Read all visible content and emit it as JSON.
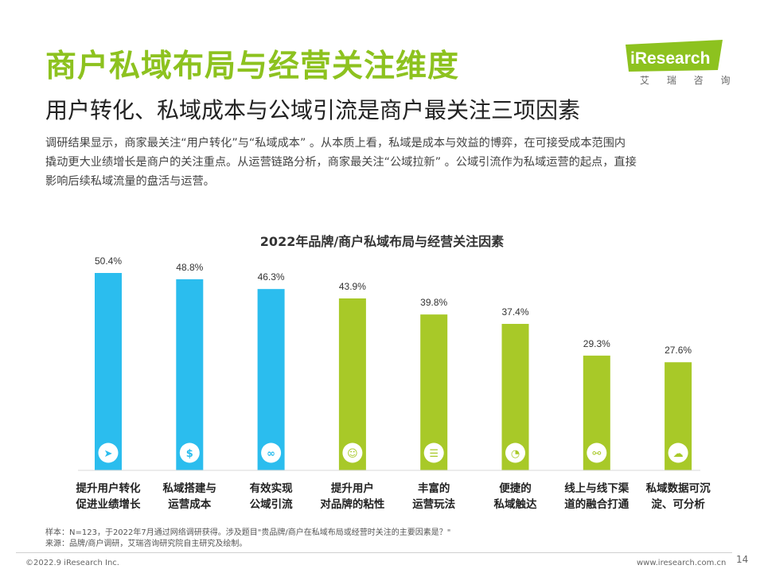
{
  "header": {
    "title": "商户私域布局与经营关注维度",
    "subtitle": "用户转化、私域成本与公域引流是商户最关注三项因素"
  },
  "logo": {
    "brand": "iResearch",
    "sub": "艾 瑞 咨 询",
    "color": "#8dc21f"
  },
  "intro": {
    "line1": "调研结果显示，商家最关注“用户转化”与“私域成本” 。从本质上看，私域是成本与效益的博弈，在可接受成本范围内",
    "line2": "撬动更大业绩增长是商户的关注重点。从运营链路分析，商家最关注“公域拉新” 。公域引流作为私域运营的起点，直接",
    "line3": "影响后续私域流量的盘活与运营。"
  },
  "chart_data": {
    "type": "bar",
    "title": "2022年品牌/商户私域布局与经营关注因素",
    "categories": [
      [
        "提升用户转化",
        "促进业绩增长"
      ],
      [
        "私域搭建与",
        "运营成本"
      ],
      [
        "有效实现",
        "公域引流"
      ],
      [
        "提升用户",
        "对品牌的粘性"
      ],
      [
        "丰富的",
        "运营玩法"
      ],
      [
        "便捷的",
        "私域触达"
      ],
      [
        "线上与线下渠",
        "道的融合打通"
      ],
      [
        "私域数据可沉",
        "淀、可分析"
      ]
    ],
    "values": [
      50.4,
      48.8,
      46.3,
      43.9,
      39.8,
      37.4,
      29.3,
      27.6
    ],
    "value_labels": [
      "50.4%",
      "48.8%",
      "46.3%",
      "43.9%",
      "39.8%",
      "37.4%",
      "29.3%",
      "27.6%"
    ],
    "ylim": [
      0,
      50.4
    ],
    "colors": [
      "#2bbdee",
      "#2bbdee",
      "#2bbdee",
      "#a8c928",
      "#a8c928",
      "#a8c928",
      "#a8c928",
      "#a8c928"
    ],
    "icons": [
      "navigation-icon",
      "money-bag-icon",
      "link-nodes-icon",
      "users-icon",
      "document-icon",
      "satellite-icon",
      "chain-link-icon",
      "cloud-upload-icon"
    ],
    "icon_glyphs": [
      "➤",
      "$",
      "∞",
      "☺",
      "☰",
      "◔",
      "⚯",
      "☁"
    ],
    "grid": false,
    "legend": "none"
  },
  "footer": {
    "sample": "样本：N=123，于2022年7月通过网络调研获得。涉及题目\"贵品牌/商户在私域布局或经营时关注的主要因素是？\"",
    "source": "来源：品牌/商户调研，艾瑞咨询研究院自主研究及绘制。",
    "copyright": "©2022.9 iResearch Inc.",
    "website": "www.iresearch.com.cn",
    "page": "14"
  }
}
